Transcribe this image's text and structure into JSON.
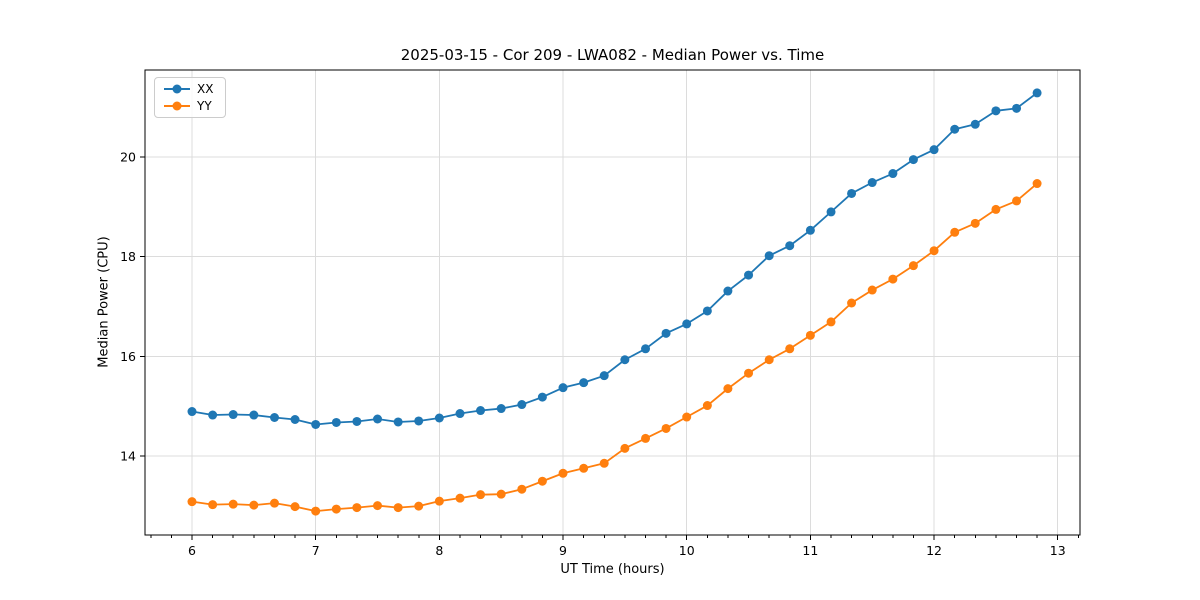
{
  "chart_data": {
    "type": "line",
    "title": "2025-03-15 - Cor 209 - LWA082 - Median Power vs. Time",
    "xlabel": "UT Time (hours)",
    "ylabel": "Median Power (CPU)",
    "xlim": [
      5.62,
      13.18
    ],
    "ylim": [
      12.41,
      21.75
    ],
    "xticks": [
      6,
      7,
      8,
      9,
      10,
      11,
      12,
      13
    ],
    "yticks": [
      14,
      16,
      18,
      20
    ],
    "x_minor_step": 0.16667,
    "grid": true,
    "legend_position": "upper left",
    "marker": "circle",
    "x": [
      6.0,
      6.167,
      6.333,
      6.5,
      6.667,
      6.833,
      7.0,
      7.167,
      7.333,
      7.5,
      7.667,
      7.833,
      8.0,
      8.167,
      8.333,
      8.5,
      8.667,
      8.833,
      9.0,
      9.167,
      9.333,
      9.5,
      9.667,
      9.833,
      10.0,
      10.167,
      10.333,
      10.5,
      10.667,
      10.833,
      11.0,
      11.167,
      11.333,
      11.5,
      11.667,
      11.833,
      12.0,
      12.167,
      12.333,
      12.5,
      12.667,
      12.833
    ],
    "series": [
      {
        "name": "XX",
        "color": "#1f77b4",
        "values": [
          14.89,
          14.82,
          14.83,
          14.82,
          14.77,
          14.73,
          14.63,
          14.67,
          14.69,
          14.74,
          14.68,
          14.7,
          14.76,
          14.85,
          14.91,
          14.95,
          15.03,
          15.18,
          15.37,
          15.47,
          15.61,
          15.93,
          16.15,
          16.46,
          16.65,
          16.91,
          17.31,
          17.63,
          18.02,
          18.22,
          18.53,
          18.9,
          19.27,
          19.49,
          19.67,
          19.95,
          20.15,
          20.56,
          20.66,
          20.93,
          20.98,
          21.29
        ]
      },
      {
        "name": "YY",
        "color": "#ff7f0e",
        "values": [
          13.08,
          13.02,
          13.03,
          13.01,
          13.05,
          12.98,
          12.89,
          12.93,
          12.96,
          13.0,
          12.96,
          12.99,
          13.09,
          13.15,
          13.22,
          13.23,
          13.33,
          13.49,
          13.65,
          13.75,
          13.85,
          14.15,
          14.35,
          14.55,
          14.78,
          15.01,
          15.35,
          15.66,
          15.93,
          16.15,
          16.42,
          16.69,
          17.07,
          17.33,
          17.55,
          17.82,
          18.12,
          18.49,
          18.67,
          18.95,
          19.12,
          19.47
        ]
      }
    ],
    "colors": {
      "grid": "#dcdcdc",
      "spine": "#000000",
      "tick_label": "#000000",
      "background": "#ffffff"
    }
  }
}
